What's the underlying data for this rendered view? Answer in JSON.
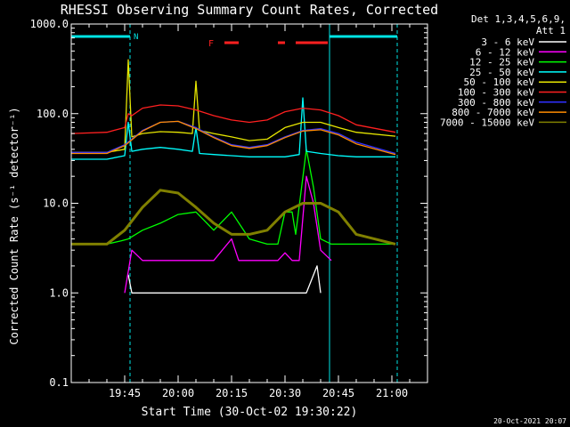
{
  "chart_data": {
    "type": "line",
    "title": "RHESSI Observing Summary Count Rates, Corrected",
    "xlabel": "Start Time (30-Oct-02 19:30:22)",
    "ylabel": "Corrected Count Rate (s⁻¹ detector⁻¹)",
    "y_scale": "log",
    "ylim": [
      0.1,
      1000
    ],
    "xlim_minutes_after_19_30": [
      0,
      100
    ],
    "x_tick_labels": [
      "19:45",
      "20:00",
      "20:15",
      "20:30",
      "20:45",
      "21:00"
    ],
    "x_tick_minutes": [
      15,
      30,
      45,
      60,
      75,
      90
    ],
    "y_tick_labels": [
      "0.1",
      "1.0",
      "10.0",
      "100.0",
      "1000.0"
    ],
    "y_tick_values": [
      0.1,
      1,
      10,
      100,
      1000
    ],
    "grid": false,
    "legend_header": [
      "Det 1,3,4,5,6,9,",
      "Att 1"
    ],
    "legend_placement": "right-outside",
    "timestamp": "20-Oct-2021 20:07",
    "flag_labels": [
      {
        "text": "N",
        "color": "#00e5e5"
      },
      {
        "text": "F",
        "color": "#ff2020"
      }
    ],
    "cyan_lines": {
      "solid_minutes": [
        0,
        72.5
      ],
      "dashed_minutes": [
        16.5,
        91.5
      ],
      "bar_segments_minutes": [
        [
          0,
          16.5
        ],
        [
          72.5,
          91.5
        ]
      ]
    },
    "flare_bar_segments_minutes": [
      [
        43,
        47
      ],
      [
        58,
        60
      ],
      [
        63,
        72
      ]
    ],
    "series": [
      {
        "name": "3 - 6 keV",
        "color": "#ffffff",
        "x": [
          16,
          17,
          18,
          19,
          25,
          30,
          38,
          42,
          48,
          56,
          60,
          62,
          66,
          69,
          70
        ],
        "y": [
          1.6,
          1.0,
          1.0,
          1.0,
          1.0,
          1.0,
          1.0,
          1.0,
          1.0,
          1.0,
          1.0,
          1.0,
          1.0,
          2.0,
          1.0
        ]
      },
      {
        "name": "6 - 12 keV",
        "color": "#ff00ff",
        "x": [
          15,
          17,
          20,
          30,
          40,
          45,
          47,
          50,
          55,
          58,
          60,
          62,
          64,
          66,
          68,
          70,
          73
        ],
        "y": [
          1.0,
          3.0,
          2.3,
          2.3,
          2.3,
          4.0,
          2.3,
          2.3,
          2.3,
          2.3,
          2.8,
          2.3,
          2.3,
          20.0,
          10.0,
          3.0,
          2.3
        ]
      },
      {
        "name": "12 - 25 keV",
        "color": "#00ff00",
        "x": [
          0,
          10,
          14,
          16,
          20,
          25,
          30,
          35,
          40,
          45,
          50,
          55,
          58,
          60,
          62,
          63,
          66,
          68,
          70,
          73,
          80,
          91
        ],
        "y": [
          3.5,
          3.5,
          3.8,
          4.0,
          5.0,
          6.0,
          7.5,
          8.0,
          5.0,
          8.0,
          4.0,
          3.5,
          3.5,
          8.0,
          8.0,
          4.5,
          40.0,
          15.0,
          4.0,
          3.5,
          3.5,
          3.5
        ]
      },
      {
        "name": "25 - 50 keV",
        "color": "#00ffff",
        "x": [
          0,
          10,
          15,
          16,
          17,
          20,
          25,
          30,
          34,
          35,
          36,
          40,
          45,
          50,
          55,
          60,
          64,
          65,
          66,
          70,
          75,
          80,
          91
        ],
        "y": [
          31,
          31,
          34,
          80,
          38,
          40,
          42,
          40,
          38,
          70,
          36,
          35,
          34,
          33,
          33,
          33,
          35,
          150,
          38,
          36,
          34,
          33,
          33
        ]
      },
      {
        "name": "50 - 100 keV",
        "color": "#e6e600",
        "x": [
          0,
          10,
          15,
          16,
          17,
          20,
          25,
          30,
          34,
          35,
          36,
          40,
          45,
          50,
          55,
          60,
          65,
          70,
          75,
          80,
          91
        ],
        "y": [
          37,
          37,
          40,
          400,
          55,
          60,
          63,
          62,
          60,
          230,
          65,
          60,
          55,
          50,
          52,
          70,
          80,
          80,
          70,
          62,
          56
        ]
      },
      {
        "name": "100 - 300 keV",
        "color": "#ff2020",
        "x": [
          0,
          10,
          15,
          16,
          17,
          20,
          25,
          30,
          35,
          40,
          45,
          50,
          55,
          60,
          65,
          70,
          75,
          80,
          91
        ],
        "y": [
          60,
          62,
          70,
          100,
          95,
          115,
          125,
          122,
          110,
          95,
          85,
          80,
          85,
          105,
          115,
          110,
          95,
          75,
          62
        ]
      },
      {
        "name": "300 - 800 keV",
        "color": "#3030ff",
        "x": [
          0,
          10,
          15,
          20,
          25,
          30,
          35,
          40,
          45,
          50,
          55,
          60,
          65,
          70,
          75,
          80,
          91
        ],
        "y": [
          37,
          37,
          45,
          65,
          80,
          82,
          70,
          55,
          45,
          42,
          45,
          55,
          65,
          68,
          60,
          48,
          36
        ]
      },
      {
        "name": "800 - 7000 keV",
        "color": "#ff8c00",
        "x": [
          0,
          10,
          15,
          20,
          25,
          30,
          35,
          40,
          45,
          50,
          55,
          60,
          65,
          70,
          75,
          80,
          91
        ],
        "y": [
          36,
          36,
          44,
          64,
          80,
          82,
          68,
          54,
          44,
          41,
          44,
          54,
          64,
          66,
          58,
          46,
          35
        ]
      },
      {
        "name": "7000 - 15000 keV",
        "color": "#808000",
        "x": [
          0,
          10,
          15,
          20,
          25,
          30,
          35,
          40,
          45,
          50,
          55,
          60,
          65,
          70,
          75,
          80,
          91
        ],
        "y": [
          3.5,
          3.5,
          5.0,
          9.0,
          14.0,
          13.0,
          9.0,
          6.0,
          4.5,
          4.5,
          5.0,
          8.0,
          10.0,
          10.0,
          8.0,
          4.5,
          3.5
        ]
      }
    ]
  }
}
